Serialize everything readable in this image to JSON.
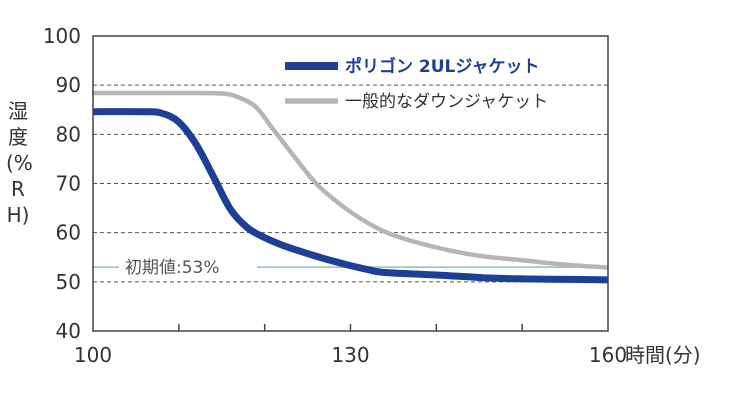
{
  "chart_data": {
    "type": "line",
    "title": "",
    "xlabel": "時間(分)",
    "ylabel": "湿度(%RH)",
    "xlim": [
      100,
      160
    ],
    "ylim": [
      40,
      100
    ],
    "x_ticks_labeled": [
      100,
      130,
      160
    ],
    "x_ticks_minor": [
      110,
      120,
      140,
      150
    ],
    "y_ticks": [
      40,
      50,
      60,
      70,
      80,
      90,
      100
    ],
    "grid": "dashed horizontal",
    "legend_position": "top-right",
    "series": [
      {
        "name": "ポリゴン 2ULジャケット",
        "color": "#1e3f96",
        "x": [
          100,
          106,
          108,
          110,
          112,
          114,
          116,
          118,
          120,
          122,
          124,
          126,
          128,
          130,
          132,
          134,
          140,
          146,
          150,
          155,
          160
        ],
        "y": [
          84.6,
          84.6,
          84.3,
          82.5,
          78.0,
          71.5,
          64.8,
          61.0,
          59.0,
          57.5,
          56.3,
          55.2,
          54.2,
          53.3,
          52.5,
          51.9,
          51.4,
          50.8,
          50.6,
          50.5,
          50.4
        ]
      },
      {
        "name": "一般的なダウンジャケット",
        "color": "#b5b5b5",
        "x": [
          100,
          110,
          115,
          117,
          119,
          121,
          123,
          126,
          129,
          132,
          135,
          140,
          145,
          150,
          155,
          160
        ],
        "y": [
          88.4,
          88.4,
          88.3,
          87.5,
          85.5,
          81.0,
          76.5,
          70.0,
          65.5,
          62.0,
          59.5,
          57.0,
          55.3,
          54.4,
          53.5,
          52.9
        ]
      }
    ],
    "annotation": {
      "label": "初期値:53%",
      "y": 53,
      "color": "#8fbfbf"
    },
    "colors": {
      "axis": "#555555",
      "grid": "#555555",
      "text": "#333333"
    }
  }
}
